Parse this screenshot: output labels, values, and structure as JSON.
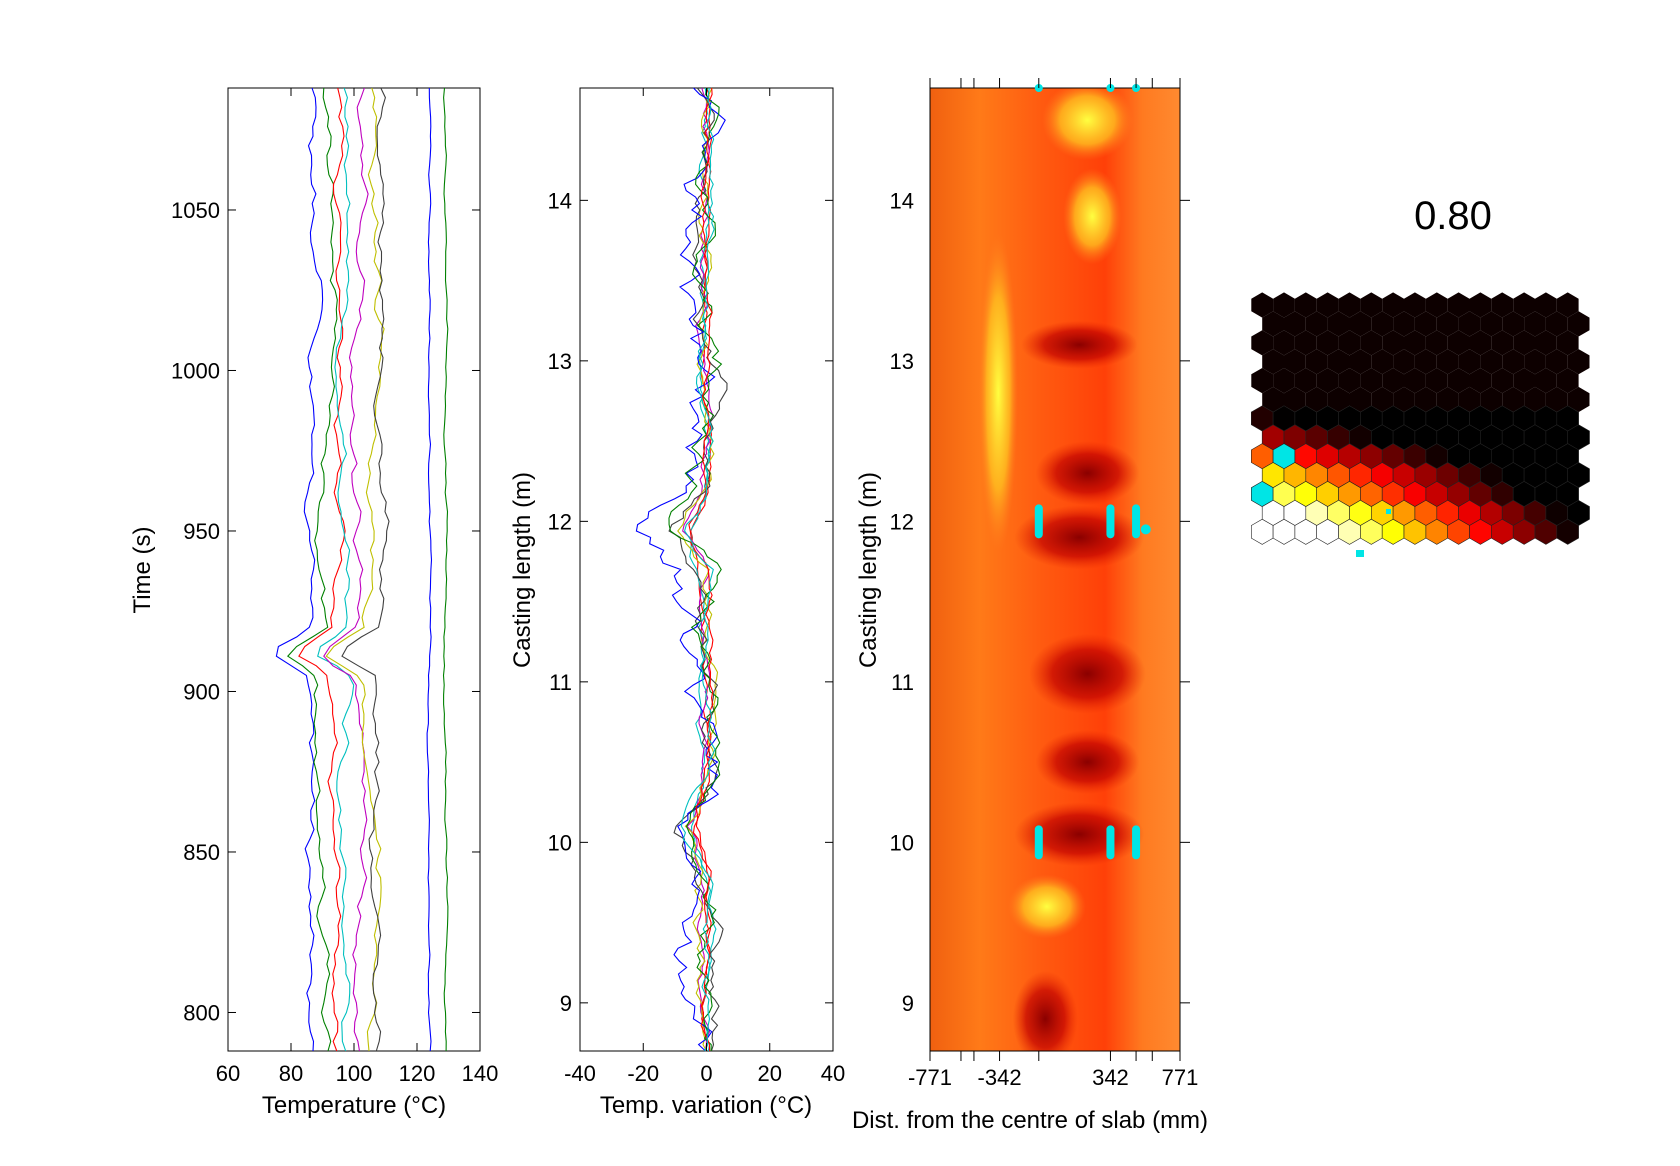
{
  "colors": {
    "series": [
      "#0000ff",
      "#008000",
      "#ff0000",
      "#00bfbf",
      "#bf00bf",
      "#bfbf00",
      "#404040"
    ],
    "marker": "#00e5e5",
    "axis": "#000000"
  },
  "chart_data": [
    {
      "type": "line",
      "xlabel": "Temperature (°C)",
      "ylabel": "Time (s)",
      "xlim": [
        60,
        140
      ],
      "ylim": [
        788,
        1088
      ],
      "xticks": [
        "60",
        "80",
        "100",
        "120",
        "140"
      ],
      "yticks": [
        "800",
        "850",
        "900",
        "950",
        "1000",
        "1050"
      ],
      "series_baselines": [
        87,
        91,
        95,
        98,
        102,
        106,
        108,
        124,
        129
      ]
    },
    {
      "type": "line",
      "xlabel": "Temp. variation (°C)",
      "ylabel": "Casting length (m)",
      "xlim": [
        -40,
        40
      ],
      "ylim": [
        8.7,
        14.7
      ],
      "xticks": [
        "-40",
        "-20",
        "0",
        "20",
        "40"
      ],
      "yticks": [
        "9",
        "10",
        "11",
        "12",
        "13",
        "14"
      ]
    },
    {
      "type": "heatmap",
      "xlabel": "Dist. from the centre of slab (mm)",
      "ylabel": "Casting length (m)",
      "xlim": [
        -771,
        771
      ],
      "ylim": [
        8.7,
        14.7
      ],
      "xticks": [
        "-771",
        "-342",
        "342",
        "771"
      ],
      "yticks": [
        "9",
        "10",
        "11",
        "12",
        "13",
        "14"
      ],
      "markers": [
        {
          "x": -100,
          "y": 10.0
        },
        {
          "x": 342,
          "y": 10.0
        },
        {
          "x": 500,
          "y": 10.0
        },
        {
          "x": -100,
          "y": 12.0
        },
        {
          "x": 342,
          "y": 12.0
        },
        {
          "x": 500,
          "y": 12.0
        }
      ]
    },
    {
      "type": "heatmap",
      "title": "0.80",
      "grid": {
        "cols": 15,
        "rows": 13
      }
    }
  ]
}
